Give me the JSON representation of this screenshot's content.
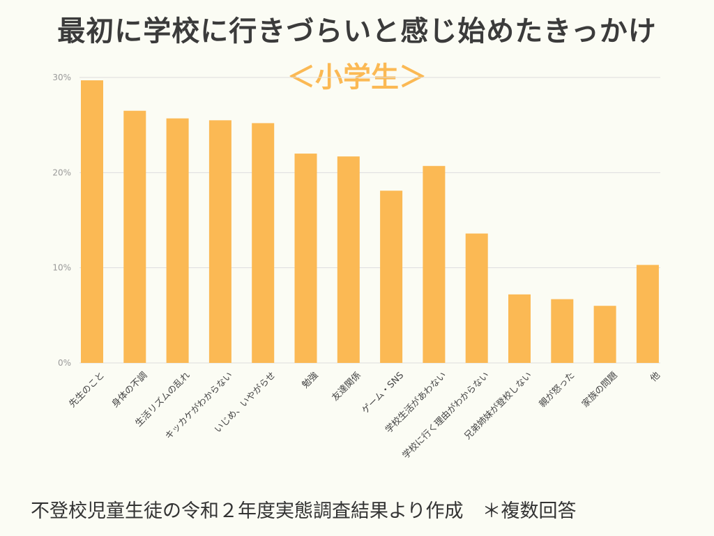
{
  "title": "最初に学校に行きづらいと感じ始めたきっかけ",
  "subtitle": "＜小学生＞",
  "footer": "不登校児童生徒の令和２年度実態調査結果より作成　＊複数回答",
  "colors": {
    "bar": "#fbb954",
    "grid": "#dddddd",
    "title": "#3b3b3b"
  },
  "chart_data": {
    "type": "bar",
    "categories": [
      "先生のこと",
      "身体の不調",
      "生活リズムの乱れ",
      "キッカケがわからない",
      "いじめ、いやがらせ",
      "勉強",
      "友達関係",
      "ゲーム・SNS",
      "学校生活があわない",
      "学校に行く理由がわからない",
      "兄弟姉妹が登校しない",
      "親が怒った",
      "家族の問題",
      "他"
    ],
    "values": [
      29.7,
      26.5,
      25.7,
      25.5,
      25.2,
      22.0,
      21.7,
      18.1,
      20.7,
      13.6,
      7.2,
      6.7,
      6.0,
      10.3
    ],
    "yticks": [
      "0%",
      "10%",
      "20%",
      "30%"
    ],
    "ylim": [
      0,
      30
    ],
    "grid": true
  }
}
